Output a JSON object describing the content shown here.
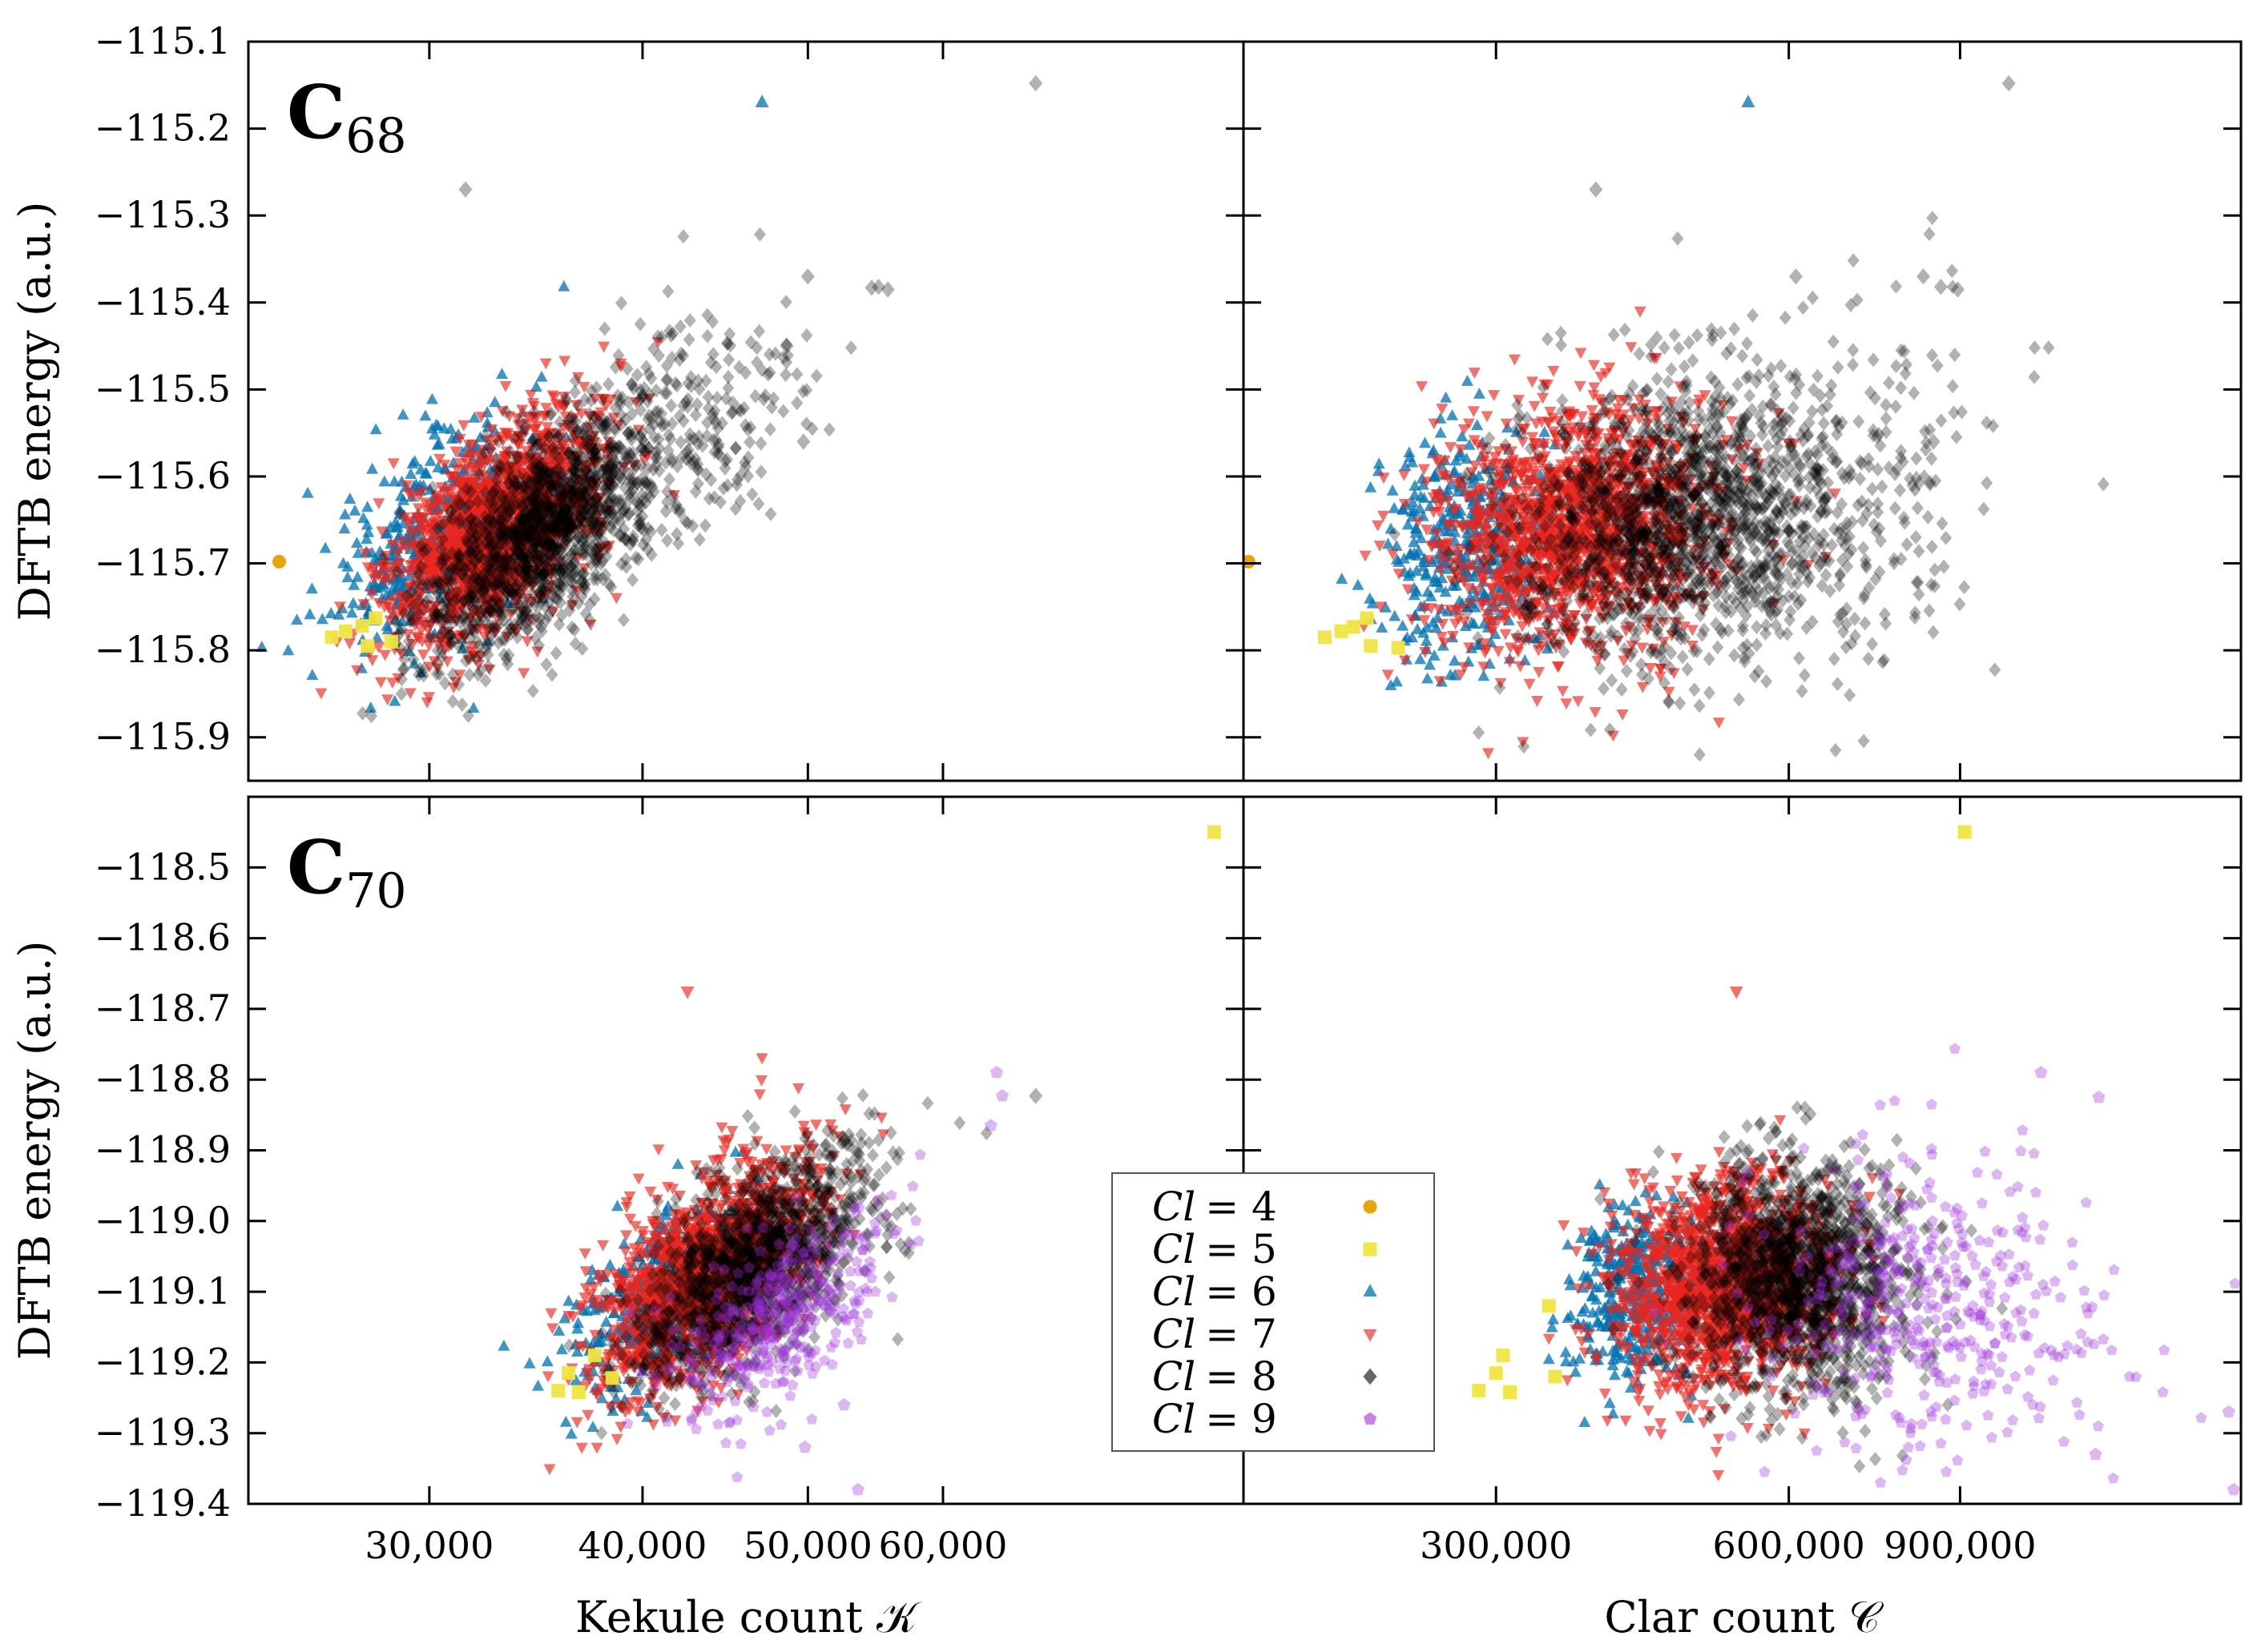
{
  "chart_data": [
    {
      "type": "scatter",
      "panel_id": "c68-kekule",
      "label": {
        "base": "C",
        "sub": "68"
      },
      "xlabel": "Kekule count 𝒦",
      "ylabel": "DFTB energy (a.u.)",
      "xscale": "log",
      "xlim": [
        23500,
        90000
      ],
      "ylim": [
        -115.95,
        -115.1
      ],
      "xticks": [
        30000,
        40000,
        50000,
        60000
      ],
      "xticklabels": [
        "30,000",
        "40,000",
        "50,000",
        "60,000"
      ],
      "yticks": [
        -115.1,
        -115.2,
        -115.3,
        -115.4,
        -115.5,
        -115.6,
        -115.7,
        -115.8,
        -115.9
      ],
      "yticklabels": [
        "−115.1",
        "−115.2",
        "−115.3",
        "−115.4",
        "−115.5",
        "−115.6",
        "−115.7",
        "−115.8",
        "−115.9"
      ],
      "clusters": [
        {
          "series": "cl6",
          "n": 420,
          "cx": 30500,
          "cy": -115.67,
          "sx": 0.07,
          "sy": 0.07,
          "rho": 0.5
        },
        {
          "series": "cl7",
          "n": 1500,
          "cx": 32800,
          "cy": -115.66,
          "sx": 0.07,
          "sy": 0.065,
          "rho": 0.55
        },
        {
          "series": "cl8",
          "n": 1400,
          "cx": 35200,
          "cy": -115.66,
          "sx": 0.08,
          "sy": 0.07,
          "rho": 0.6
        },
        {
          "series": "cl8",
          "n": 220,
          "cx": 43000,
          "cy": -115.54,
          "sx": 0.09,
          "sy": 0.07,
          "rho": 0.3
        }
      ],
      "points": [
        {
          "series": "cl4",
          "x": 24500,
          "y": -115.698
        },
        {
          "series": "cl5",
          "x": 26300,
          "y": -115.785
        },
        {
          "series": "cl5",
          "x": 26800,
          "y": -115.778
        },
        {
          "series": "cl5",
          "x": 27400,
          "y": -115.772
        },
        {
          "series": "cl5",
          "x": 27600,
          "y": -115.795
        },
        {
          "series": "cl5",
          "x": 27900,
          "y": -115.763
        },
        {
          "series": "cl5",
          "x": 28500,
          "y": -115.79
        },
        {
          "series": "cl6",
          "x": 47000,
          "y": -115.17
        },
        {
          "series": "cl8",
          "x": 68000,
          "y": -115.148
        },
        {
          "series": "cl8",
          "x": 31500,
          "y": -115.27
        },
        {
          "series": "cl8",
          "x": 55000,
          "y": -115.382
        },
        {
          "series": "cl8",
          "x": 55700,
          "y": -115.385
        },
        {
          "series": "cl8",
          "x": 54500,
          "y": -115.383
        },
        {
          "series": "cl8",
          "x": 50000,
          "y": -115.37
        },
        {
          "series": "cl8",
          "x": 49700,
          "y": -115.56
        },
        {
          "series": "cl8",
          "x": 48600,
          "y": -115.45
        }
      ]
    },
    {
      "type": "scatter",
      "panel_id": "c68-clar",
      "xlabel": "Clar count 𝒞",
      "xscale": "log",
      "xlim": [
        165000,
        1750000
      ],
      "ylim": [
        -115.95,
        -115.1
      ],
      "xticks": [
        300000,
        600000,
        900000
      ],
      "xticklabels": [
        "300,000",
        "600,000",
        "900,000"
      ],
      "clusters": [
        {
          "series": "cl6",
          "n": 380,
          "cx": 275000,
          "cy": -115.68,
          "sx": 0.1,
          "sy": 0.07,
          "rho": 0.2
        },
        {
          "series": "cl7",
          "n": 1500,
          "cx": 360000,
          "cy": -115.66,
          "sx": 0.17,
          "sy": 0.07,
          "rho": 0.15
        },
        {
          "series": "cl8",
          "n": 1500,
          "cx": 470000,
          "cy": -115.65,
          "sx": 0.2,
          "sy": 0.08,
          "rho": 0.1
        },
        {
          "series": "cl8",
          "n": 180,
          "cx": 720000,
          "cy": -115.62,
          "sx": 0.15,
          "sy": 0.12,
          "rho": 0
        }
      ],
      "points": [
        {
          "series": "cl4",
          "x": 167000,
          "y": -115.698
        },
        {
          "series": "cl5",
          "x": 200000,
          "y": -115.785
        },
        {
          "series": "cl5",
          "x": 208000,
          "y": -115.778
        },
        {
          "series": "cl5",
          "x": 214000,
          "y": -115.773
        },
        {
          "series": "cl5",
          "x": 221000,
          "y": -115.763
        },
        {
          "series": "cl5",
          "x": 223000,
          "y": -115.795
        },
        {
          "series": "cl5",
          "x": 238000,
          "y": -115.797
        },
        {
          "series": "cl6",
          "x": 545000,
          "y": -115.17
        },
        {
          "series": "cl8",
          "x": 1010000,
          "y": -115.148
        },
        {
          "series": "cl8",
          "x": 380000,
          "y": -115.27
        },
        {
          "series": "cl8",
          "x": 860000,
          "y": -115.382
        },
        {
          "series": "cl8",
          "x": 895000,
          "y": -115.385
        },
        {
          "series": "cl8",
          "x": 825000,
          "y": -115.37
        },
        {
          "series": "cl8",
          "x": 845000,
          "y": -115.56
        },
        {
          "series": "cl8",
          "x": 610000,
          "y": -115.37
        }
      ]
    },
    {
      "type": "scatter",
      "panel_id": "c70-kekule",
      "label": {
        "base": "C",
        "sub": "70"
      },
      "xlabel": "Kekule count 𝒦",
      "ylabel": "DFTB energy (a.u.)",
      "xscale": "log",
      "xlim": [
        23500,
        90000
      ],
      "ylim": [
        -119.4,
        -118.4
      ],
      "xticks": [
        30000,
        40000,
        50000,
        60000
      ],
      "xticklabels": [
        "30,000",
        "40,000",
        "50,000",
        "60,000"
      ],
      "yticks": [
        -118.5,
        -118.6,
        -118.7,
        -118.8,
        -118.9,
        -119.0,
        -119.1,
        -119.2,
        -119.3,
        -119.4
      ],
      "yticklabels": [
        "−118.5",
        "−118.6",
        "−118.7",
        "−118.8",
        "−118.9",
        "−119.0",
        "−119.1",
        "−119.2",
        "−119.3",
        "−119.4"
      ],
      "clusters": [
        {
          "series": "cl6",
          "n": 380,
          "cx": 41000,
          "cy": -119.11,
          "sx": 0.06,
          "sy": 0.07,
          "rho": 0.5
        },
        {
          "series": "cl7",
          "n": 1500,
          "cx": 43500,
          "cy": -119.08,
          "sx": 0.07,
          "sy": 0.08,
          "rho": 0.55
        },
        {
          "series": "cl8",
          "n": 1400,
          "cx": 46500,
          "cy": -119.07,
          "sx": 0.08,
          "sy": 0.08,
          "rho": 0.6
        },
        {
          "series": "cl9",
          "n": 380,
          "cx": 48500,
          "cy": -119.13,
          "sx": 0.07,
          "sy": 0.07,
          "rho": 0.6
        }
      ],
      "points": [
        {
          "series": "cl5",
          "x": 86500,
          "y": -118.45
        },
        {
          "series": "cl5",
          "x": 35700,
          "y": -119.24
        },
        {
          "series": "cl5",
          "x": 36200,
          "y": -119.215
        },
        {
          "series": "cl5",
          "x": 36700,
          "y": -119.242
        },
        {
          "series": "cl5",
          "x": 37500,
          "y": -119.19
        },
        {
          "series": "cl5",
          "x": 38400,
          "y": -119.222
        },
        {
          "series": "cl7",
          "x": 42500,
          "y": -118.675
        },
        {
          "series": "cl9",
          "x": 64500,
          "y": -118.79
        },
        {
          "series": "cl9",
          "x": 65000,
          "y": -118.823
        },
        {
          "series": "cl9",
          "x": 64000,
          "y": -118.865
        },
        {
          "series": "cl8",
          "x": 68000,
          "y": -118.823
        },
        {
          "series": "cl9",
          "x": 53500,
          "y": -119.38
        },
        {
          "series": "cl9",
          "x": 49800,
          "y": -119.32
        },
        {
          "series": "cl9",
          "x": 52500,
          "y": -119.26
        }
      ]
    },
    {
      "type": "scatter",
      "panel_id": "c70-clar",
      "xlabel": "Clar count 𝒞",
      "xscale": "log",
      "xlim": [
        165000,
        1750000
      ],
      "ylim": [
        -119.4,
        -118.4
      ],
      "xticks": [
        300000,
        600000,
        900000
      ],
      "xticklabels": [
        "300,000",
        "600,000",
        "900,000"
      ],
      "clusters": [
        {
          "series": "cl6",
          "n": 380,
          "cx": 420000,
          "cy": -119.1,
          "sx": 0.08,
          "sy": 0.06,
          "rho": 0.1
        },
        {
          "series": "cl7",
          "n": 1500,
          "cx": 520000,
          "cy": -119.09,
          "sx": 0.13,
          "sy": 0.075,
          "rho": 0.1
        },
        {
          "series": "cl8",
          "n": 1500,
          "cx": 610000,
          "cy": -119.08,
          "sx": 0.13,
          "sy": 0.08,
          "rho": 0.05
        },
        {
          "series": "cl9",
          "n": 420,
          "cx": 840000,
          "cy": -119.12,
          "sx": 0.2,
          "sy": 0.1,
          "rho": 0
        }
      ],
      "points": [
        {
          "series": "cl5",
          "x": 910000,
          "y": -118.45
        },
        {
          "series": "cl5",
          "x": 288000,
          "y": -119.24
        },
        {
          "series": "cl5",
          "x": 300000,
          "y": -119.215
        },
        {
          "series": "cl5",
          "x": 305000,
          "y": -119.19
        },
        {
          "series": "cl5",
          "x": 310000,
          "y": -119.242
        },
        {
          "series": "cl5",
          "x": 340000,
          "y": -119.12
        },
        {
          "series": "cl5",
          "x": 345000,
          "y": -119.22
        },
        {
          "series": "cl7",
          "x": 530000,
          "y": -118.675
        },
        {
          "series": "cl9",
          "x": 1090000,
          "y": -118.79
        },
        {
          "series": "cl9",
          "x": 1250000,
          "y": -118.825
        },
        {
          "series": "cl9",
          "x": 1700000,
          "y": -119.27
        },
        {
          "series": "cl9",
          "x": 1720000,
          "y": -119.38
        },
        {
          "series": "cl9",
          "x": 1240000,
          "y": -119.33
        }
      ]
    }
  ],
  "series": {
    "cl4": {
      "label": "Cl = 4",
      "color": "#E69F00",
      "marker": "circle",
      "opacity": 0.95
    },
    "cl5": {
      "label": "Cl = 5",
      "color": "#F0E442",
      "marker": "square",
      "opacity": 0.95
    },
    "cl6": {
      "label": "Cl = 6",
      "color": "#0072B2",
      "marker": "triangle-up",
      "opacity": 0.75
    },
    "cl7": {
      "label": "Cl = 7",
      "color": "#E8271F",
      "marker": "triangle-down",
      "opacity": 0.65
    },
    "cl8": {
      "label": "Cl = 8",
      "color": "#000000",
      "marker": "diamond",
      "opacity": 0.3
    },
    "cl9": {
      "label": "Cl = 9",
      "color": "#9B30D9",
      "marker": "pentagon",
      "opacity": 0.35
    }
  },
  "legend": {
    "location": "center, between lower panels",
    "entries": [
      {
        "key": "cl4",
        "lhs": "Cl",
        "rhs": "= 4"
      },
      {
        "key": "cl5",
        "lhs": "Cl",
        "rhs": "= 5"
      },
      {
        "key": "cl6",
        "lhs": "Cl",
        "rhs": "= 6"
      },
      {
        "key": "cl7",
        "lhs": "Cl",
        "rhs": "= 7"
      },
      {
        "key": "cl8",
        "lhs": "Cl",
        "rhs": "= 8"
      },
      {
        "key": "cl9",
        "lhs": "Cl",
        "rhs": "= 9"
      }
    ]
  }
}
